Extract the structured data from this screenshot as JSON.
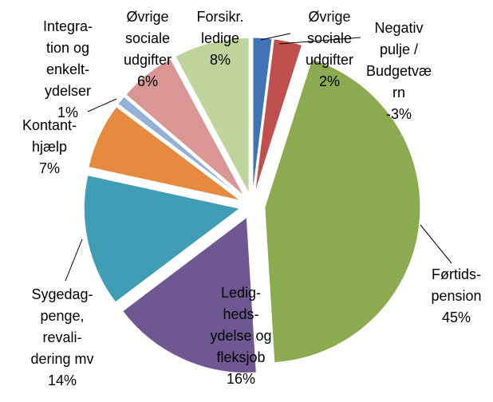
{
  "chart_data": {
    "type": "pie",
    "categories": [
      [
        "Øvrige",
        "sociale",
        "udgifter"
      ],
      [
        "Negativ",
        "pulje /",
        "Budgetvæ",
        "rn"
      ],
      [
        "Førtids-",
        "pension"
      ],
      [
        "Ledig-",
        "heds-",
        "ydelse og",
        "fleksjob"
      ],
      [
        "Sygedag-",
        "penge,",
        "revali-",
        "dering mv"
      ],
      [
        "Kontant-",
        "hjælp"
      ],
      [
        "Integra-",
        "tion og",
        "enkelt-",
        "ydelser"
      ],
      [
        "Øvrige",
        "sociale",
        "udgifter"
      ],
      [
        "Forsikr.",
        "ledige"
      ]
    ],
    "values": [
      2,
      -3,
      45,
      16,
      14,
      7,
      1,
      6,
      8
    ],
    "value_labels": [
      "2%",
      "-3%",
      "45%",
      "16%",
      "14%",
      "7%",
      "1%",
      "6%",
      "8%"
    ],
    "colors": [
      "#3f74b5",
      "#c0504d",
      "#8aab4f",
      "#6f5792",
      "#3f9db5",
      "#e68a3f",
      "#93b0d6",
      "#d99694",
      "#bfd49a"
    ]
  }
}
